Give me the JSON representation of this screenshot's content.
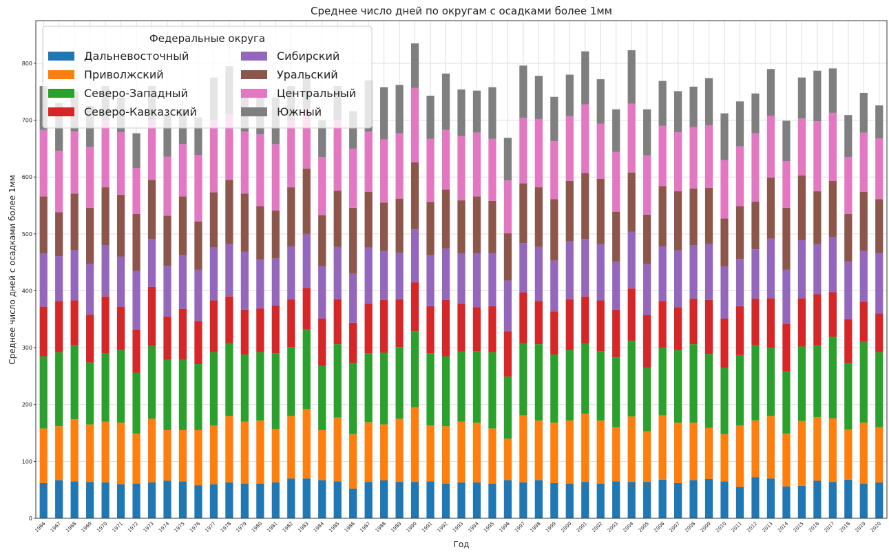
{
  "chart_data": {
    "type": "stacked_bar",
    "title": "Среднее число дней по округам с осадками более 1мм",
    "x_label": "Год",
    "y_label": "Среднее число дней с осадками более 1мм",
    "legend_title": "Федеральные округа",
    "legend_position": "upper-left",
    "grid": true,
    "categories": [
      "1966",
      "1967",
      "1968",
      "1969",
      "1970",
      "1971",
      "1972",
      "1973",
      "1974",
      "1975",
      "1976",
      "1977",
      "1978",
      "1979",
      "1980",
      "1981",
      "1982",
      "1983",
      "1984",
      "1985",
      "1986",
      "1987",
      "1988",
      "1989",
      "1990",
      "1991",
      "1992",
      "1993",
      "1994",
      "1995",
      "1996",
      "1997",
      "1998",
      "1999",
      "2000",
      "2001",
      "2002",
      "2003",
      "2004",
      "2005",
      "2006",
      "2007",
      "2008",
      "2009",
      "2010",
      "2011",
      "2012",
      "2013",
      "2014",
      "2015",
      "2016",
      "2017",
      "2018",
      "2019",
      "2020"
    ],
    "ylim": [
      0,
      875
    ],
    "yticks": [
      0,
      100,
      200,
      300,
      400,
      500,
      600,
      700,
      800
    ],
    "series": [
      {
        "name": "Дальневосточный",
        "color": "#1f77b4",
        "values": [
          62,
          67,
          65,
          64,
          63,
          60,
          61,
          63,
          66,
          65,
          58,
          60,
          63,
          61,
          61,
          63,
          70,
          70,
          67,
          65,
          52,
          64,
          67,
          64,
          64,
          65,
          61,
          63,
          63,
          61,
          67,
          63,
          67,
          62,
          61,
          64,
          61,
          65,
          64,
          64,
          68,
          62,
          67,
          69,
          65,
          55,
          72,
          70,
          56,
          57,
          66,
          64,
          68,
          61,
          63
        ]
      },
      {
        "name": "Приволжский",
        "color": "#ff7f0e",
        "values": [
          96,
          95,
          109,
          101,
          107,
          108,
          88,
          112,
          89,
          90,
          97,
          103,
          117,
          109,
          111,
          94,
          110,
          122,
          88,
          112,
          96,
          105,
          98,
          111,
          131,
          98,
          101,
          107,
          105,
          97,
          73,
          118,
          105,
          106,
          111,
          120,
          111,
          95,
          115,
          89,
          113,
          106,
          101,
          90,
          83,
          108,
          100,
          110,
          93,
          114,
          112,
          112,
          88,
          107,
          97
        ]
      },
      {
        "name": "Северо-Западный",
        "color": "#2ca02c",
        "values": [
          127,
          130,
          130,
          109,
          120,
          128,
          107,
          128,
          124,
          124,
          116,
          129,
          128,
          118,
          120,
          133,
          121,
          140,
          113,
          129,
          125,
          121,
          126,
          126,
          134,
          127,
          123,
          123,
          126,
          134,
          109,
          127,
          134,
          120,
          124,
          123,
          122,
          123,
          133,
          112,
          119,
          128,
          138,
          130,
          117,
          124,
          133,
          120,
          110,
          131,
          126,
          143,
          117,
          142,
          132
        ]
      },
      {
        "name": "Северо-Кавказский",
        "color": "#d62728",
        "values": [
          87,
          90,
          79,
          84,
          100,
          76,
          76,
          104,
          76,
          89,
          76,
          91,
          82,
          79,
          77,
          84,
          84,
          73,
          83,
          79,
          71,
          87,
          93,
          84,
          86,
          83,
          99,
          84,
          77,
          81,
          80,
          89,
          76,
          76,
          89,
          83,
          89,
          84,
          92,
          92,
          82,
          75,
          80,
          95,
          86,
          86,
          81,
          87,
          83,
          85,
          90,
          79,
          77,
          71,
          68
        ]
      },
      {
        "name": "Сибирский",
        "color": "#9467bd",
        "values": [
          94,
          79,
          89,
          89,
          90,
          88,
          103,
          84,
          89,
          94,
          90,
          93,
          92,
          102,
          86,
          83,
          93,
          95,
          92,
          92,
          86,
          99,
          86,
          82,
          93,
          89,
          90,
          89,
          95,
          93,
          89,
          87,
          95,
          89,
          102,
          101,
          99,
          84,
          100,
          90,
          96,
          100,
          94,
          98,
          92,
          83,
          87,
          105,
          95,
          102,
          88,
          97,
          101,
          89,
          106
        ]
      },
      {
        "name": "Уральский",
        "color": "#8c564b",
        "values": [
          100,
          77,
          99,
          99,
          102,
          109,
          100,
          104,
          88,
          104,
          85,
          97,
          113,
          102,
          94,
          84,
          104,
          115,
          90,
          99,
          116,
          98,
          85,
          95,
          118,
          94,
          104,
          93,
          100,
          92,
          83,
          105,
          105,
          108,
          106,
          116,
          115,
          88,
          104,
          87,
          106,
          104,
          100,
          99,
          84,
          93,
          84,
          107,
          109,
          114,
          93,
          98,
          84,
          104,
          95
        ]
      },
      {
        "name": "Центральный",
        "color": "#e377c2",
        "values": [
          117,
          108,
          109,
          107,
          118,
          110,
          81,
          105,
          104,
          92,
          117,
          127,
          115,
          109,
          126,
          117,
          118,
          105,
          102,
          124,
          104,
          106,
          111,
          115,
          131,
          111,
          105,
          113,
          112,
          109,
          93,
          115,
          120,
          102,
          114,
          121,
          97,
          105,
          121,
          104,
          106,
          104,
          108,
          110,
          103,
          105,
          120,
          109,
          82,
          100,
          123,
          120,
          100,
          104,
          107
        ]
      },
      {
        "name": "Южный",
        "color": "#7f7f7f",
        "values": [
          77,
          84,
          70,
          72,
          60,
          61,
          61,
          60,
          74,
          62,
          66,
          75,
          85,
          60,
          65,
          82,
          60,
          55,
          65,
          60,
          66,
          90,
          92,
          85,
          78,
          76,
          99,
          82,
          74,
          91,
          75,
          92,
          76,
          78,
          73,
          93,
          78,
          75,
          94,
          81,
          79,
          72,
          71,
          83,
          82,
          79,
          70,
          82,
          71,
          72,
          89,
          78,
          74,
          70,
          58
        ]
      }
    ]
  }
}
